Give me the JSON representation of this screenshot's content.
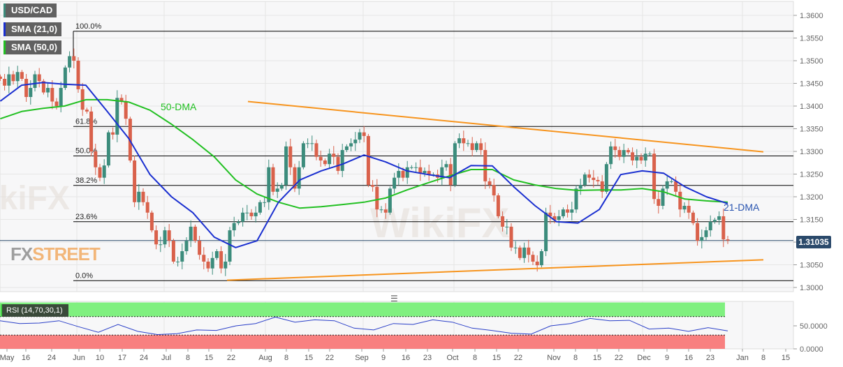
{
  "legend": {
    "symbol": "USD/CAD",
    "sma21": "SMA (21,0)",
    "sma50": "SMA (50,0)"
  },
  "colors": {
    "up": "#3c8c7c",
    "down": "#d9614b",
    "sma21": "#1a2fd0",
    "sma50": "#22c022",
    "trend": "#f7941d",
    "fib": "#000000",
    "rsi": "#2a3fc8",
    "overbought": "#80f080",
    "oversold": "#f88080"
  },
  "logo": {
    "part1": "FX",
    "part2": "STREET",
    "watermark": "WikiFX"
  },
  "handle_icon": "drag-handle-icon",
  "chart_data": {
    "type": "candlestick",
    "title": "USD/CAD",
    "last_price": "1.31035",
    "ylim": [
      1.298,
      1.364
    ],
    "y_ticks": [
      "1.3600",
      "1.3550",
      "1.3500",
      "1.3450",
      "1.3400",
      "1.3350",
      "1.3300",
      "1.3250",
      "1.3200",
      "1.3150",
      "1.3100",
      "1.3050",
      "1.3000"
    ],
    "x_ticks": [
      "May",
      "16",
      "24",
      "Jun",
      "10",
      "17",
      "24",
      "Jul",
      "8",
      "15",
      "22",
      "Aug",
      "8",
      "15",
      "22",
      "Sep",
      "9",
      "16",
      "23",
      "Oct",
      "8",
      "15",
      "22",
      "Nov",
      "8",
      "15",
      "22",
      "Dec",
      "9",
      "16",
      "23",
      "Jan",
      "8",
      "15"
    ],
    "closes": [
      1.346,
      1.3445,
      1.347,
      1.3455,
      1.3475,
      1.346,
      1.342,
      1.344,
      1.347,
      1.3455,
      1.343,
      1.344,
      1.341,
      1.34,
      1.344,
      1.3485,
      1.351,
      1.35,
      1.3437,
      1.3392,
      1.3388,
      1.33,
      1.3265,
      1.3242,
      1.3269,
      1.3342,
      1.3337,
      1.3418,
      1.3411,
      1.3372,
      1.328,
      1.3188,
      1.3211,
      1.3188,
      1.3165,
      1.3126,
      1.3095,
      1.3095,
      1.3126,
      1.3103,
      1.3057,
      1.3057,
      1.308,
      1.3103,
      1.3134,
      1.3103,
      1.3072,
      1.3057,
      1.3042,
      1.3065,
      1.308,
      1.3042,
      1.3057,
      1.3126,
      1.3142,
      1.3145,
      1.3165,
      1.3165,
      1.3157,
      1.3165,
      1.3188,
      1.3188,
      1.3265,
      1.3211,
      1.3218,
      1.3226,
      1.3311,
      1.3265,
      1.3218,
      1.3265,
      1.3318,
      1.3318,
      1.3318,
      1.3288,
      1.328,
      1.3272,
      1.3295,
      1.3288,
      1.3257,
      1.3303,
      1.3311,
      1.3318,
      1.3326,
      1.3342,
      1.3334,
      1.3226,
      1.3222,
      1.3172,
      1.3172,
      1.3165,
      1.3218,
      1.3242,
      1.3257,
      1.3242,
      1.3265,
      1.3265,
      1.3265,
      1.3252,
      1.3257,
      1.3249,
      1.3249,
      1.3242,
      1.3265,
      1.3272,
      1.3226,
      1.3318,
      1.3329,
      1.3318,
      1.3318,
      1.3303,
      1.3318,
      1.3303,
      1.3234,
      1.3226,
      1.3203,
      1.3157,
      1.3134,
      1.3134,
      1.3088,
      1.3088,
      1.3065,
      1.3088,
      1.3072,
      1.3057,
      1.3049,
      1.308,
      1.3165,
      1.3157,
      1.3149,
      1.3157,
      1.3172,
      1.3165,
      1.3172,
      1.3218,
      1.3226,
      1.3249,
      1.3242,
      1.3237,
      1.3234,
      1.3211,
      1.3272,
      1.3311,
      1.3303,
      1.3288,
      1.3303,
      1.3298,
      1.328,
      1.3288,
      1.328,
      1.3295,
      1.3295,
      1.3195,
      1.318,
      1.3218,
      1.3234,
      1.3234,
      1.3211,
      1.3172,
      1.318,
      1.3165,
      1.3142,
      1.3103,
      1.3111,
      1.3126,
      1.3145,
      1.3149,
      1.3157,
      1.3106,
      1.31035
    ],
    "sma21": [
      1.3411,
      1.3446,
      1.3452,
      1.3448,
      1.3446,
      1.3388,
      1.3329,
      1.3249,
      1.32,
      1.3165,
      1.3111,
      1.3088,
      1.3103,
      1.3188,
      1.3237,
      1.3257,
      1.3272,
      1.3292,
      1.3277,
      1.3257,
      1.3249,
      1.3242,
      1.3269,
      1.3268,
      1.3222,
      1.318,
      1.3145,
      1.3142,
      1.3172,
      1.3249,
      1.3257,
      1.3252,
      1.3222,
      1.32,
      1.3185
    ],
    "sma50": [
      1.3372,
      1.3388,
      1.3395,
      1.34,
      1.3414,
      1.3414,
      1.3409,
      1.3391,
      1.336,
      1.3326,
      1.3288,
      1.3237,
      1.3206,
      1.3188,
      1.3175,
      1.3178,
      1.3183,
      1.3188,
      1.3197,
      1.3215,
      1.3231,
      1.3246,
      1.326,
      1.326,
      1.3237,
      1.3226,
      1.3218,
      1.3214,
      1.3215,
      1.3215,
      1.3218,
      1.3211,
      1.3195,
      1.3191,
      1.3188
    ],
    "fibonacci": [
      {
        "label": "100.0%",
        "price": 1.3565
      },
      {
        "label": "61.8%",
        "price": 1.3355
      },
      {
        "label": "50.0%",
        "price": 1.329
      },
      {
        "label": "38.2%",
        "price": 1.3225
      },
      {
        "label": "23.6%",
        "price": 1.3145
      },
      {
        "label": "0.0%",
        "price": 1.3015
      }
    ],
    "trendlines": [
      {
        "name": "resistance",
        "from": 1.341,
        "to": 1.3299
      },
      {
        "name": "support",
        "from": 1.3016,
        "to": 1.3061
      }
    ],
    "annotations": {
      "sma50": "50-DMA",
      "sma21": "21-DMA"
    },
    "rsi": {
      "label": "RSI (14,70,30,1)",
      "ylim": [
        0,
        100
      ],
      "y_ticks": [
        "50.0000",
        "0.0000"
      ],
      "overbought": 70,
      "oversold": 30,
      "values": [
        61,
        55,
        56,
        61,
        48,
        36,
        53,
        38,
        31,
        33,
        41,
        40,
        50,
        55,
        69,
        58,
        63,
        61,
        45,
        41,
        55,
        53,
        63,
        58,
        45,
        40,
        34,
        32,
        50,
        55,
        66,
        61,
        62,
        43,
        45,
        38,
        46,
        39
      ]
    }
  }
}
